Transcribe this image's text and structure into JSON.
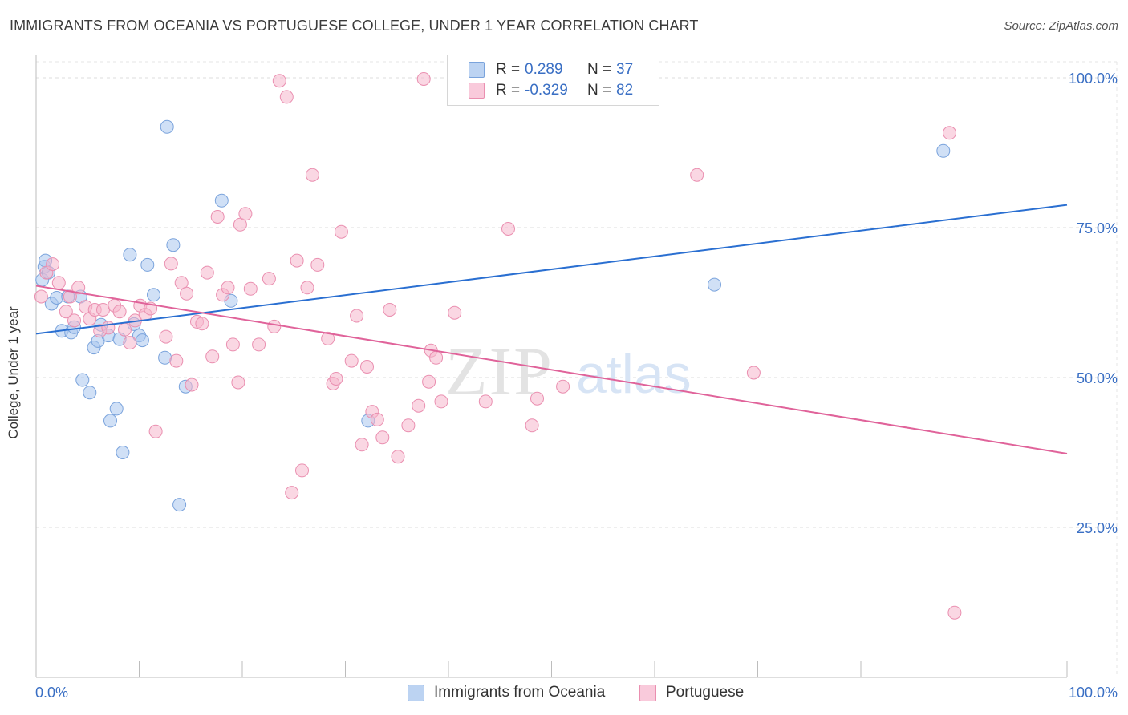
{
  "title": "IMMIGRANTS FROM OCEANIA VS PORTUGUESE COLLEGE, UNDER 1 YEAR CORRELATION CHART",
  "source": "Source: ZipAtlas.com",
  "watermark": {
    "zip": "ZIP",
    "atlas": "atlas"
  },
  "legend": {
    "rows": [
      {
        "r_label": "R =",
        "r_value": "0.289",
        "n_label": "N =",
        "n_value": "37",
        "color": "#a9c6ee"
      },
      {
        "r_label": "R =",
        "r_value": "-0.329",
        "n_label": "N =",
        "n_value": "82",
        "color": "#f5b6cc"
      }
    ]
  },
  "bottom_legend": [
    {
      "label": "Immigrants from Oceania",
      "color": "#a9c6ee"
    },
    {
      "label": "Portuguese",
      "color": "#f5b6cc"
    }
  ],
  "chart_data": {
    "type": "scatter",
    "title": "IMMIGRANTS FROM OCEANIA VS PORTUGUESE COLLEGE, UNDER 1 YEAR CORRELATION CHART",
    "xlabel": "",
    "ylabel": "College, Under 1 year",
    "xlim": [
      0,
      100
    ],
    "ylim": [
      0,
      105
    ],
    "x_tick_labels": [
      {
        "value": 0,
        "label": "0.0%"
      },
      {
        "value": 100,
        "label": "100.0%"
      }
    ],
    "y_tick_labels": [
      {
        "value": 25,
        "label": "25.0%"
      },
      {
        "value": 50,
        "label": "50.0%"
      },
      {
        "value": 75,
        "label": "75.0%"
      },
      {
        "value": 100,
        "label": "100.0%"
      }
    ],
    "x_minor_ticks": [
      10,
      20,
      30,
      40,
      50,
      60,
      70,
      80,
      90
    ],
    "grid": true,
    "series": [
      {
        "name": "Immigrants from Oceania",
        "color": "#a9c6ee",
        "stroke": "#7aa3dc",
        "trend": {
          "x": [
            0,
            100
          ],
          "y": [
            57.3,
            78.8
          ],
          "color": "#2a6fd1"
        },
        "points": [
          [
            0.6,
            66.3
          ],
          [
            0.8,
            68.5
          ],
          [
            0.9,
            69.5
          ],
          [
            1.2,
            67.5
          ],
          [
            1.5,
            62.3
          ],
          [
            2.0,
            63.3
          ],
          [
            2.5,
            57.8
          ],
          [
            3.1,
            63.5
          ],
          [
            3.4,
            57.5
          ],
          [
            3.7,
            58.4
          ],
          [
            4.3,
            63.5
          ],
          [
            4.5,
            49.6
          ],
          [
            5.2,
            47.5
          ],
          [
            5.6,
            55.0
          ],
          [
            6.0,
            56.1
          ],
          [
            6.3,
            58.8
          ],
          [
            7.0,
            57.0
          ],
          [
            7.2,
            42.8
          ],
          [
            7.8,
            44.8
          ],
          [
            8.1,
            56.4
          ],
          [
            8.4,
            37.5
          ],
          [
            9.1,
            70.5
          ],
          [
            9.5,
            58.9
          ],
          [
            10.0,
            57.0
          ],
          [
            10.3,
            56.2
          ],
          [
            10.8,
            68.8
          ],
          [
            11.4,
            63.8
          ],
          [
            12.5,
            53.3
          ],
          [
            12.7,
            91.8
          ],
          [
            13.3,
            72.1
          ],
          [
            13.9,
            28.8
          ],
          [
            14.5,
            48.5
          ],
          [
            18.0,
            79.5
          ],
          [
            18.9,
            62.8
          ],
          [
            32.2,
            42.8
          ],
          [
            65.8,
            65.5
          ],
          [
            88.0,
            87.8
          ]
        ]
      },
      {
        "name": "Portuguese",
        "color": "#f5b6cc",
        "stroke": "#ea8fb0",
        "trend": {
          "x": [
            0,
            100
          ],
          "y": [
            65.3,
            37.3
          ],
          "color": "#e0639a"
        },
        "points": [
          [
            0.5,
            63.5
          ],
          [
            1.0,
            67.5
          ],
          [
            1.6,
            68.9
          ],
          [
            2.2,
            65.8
          ],
          [
            2.9,
            61.0
          ],
          [
            3.3,
            63.5
          ],
          [
            3.7,
            59.5
          ],
          [
            4.1,
            65.0
          ],
          [
            4.8,
            61.8
          ],
          [
            5.2,
            59.8
          ],
          [
            5.7,
            61.3
          ],
          [
            6.2,
            57.8
          ],
          [
            6.5,
            61.3
          ],
          [
            7.0,
            58.3
          ],
          [
            7.6,
            62.0
          ],
          [
            8.1,
            61.0
          ],
          [
            8.6,
            58.0
          ],
          [
            9.1,
            55.8
          ],
          [
            9.6,
            59.5
          ],
          [
            10.1,
            62.0
          ],
          [
            10.6,
            60.5
          ],
          [
            11.1,
            61.5
          ],
          [
            11.6,
            41.0
          ],
          [
            12.6,
            56.8
          ],
          [
            13.1,
            69.0
          ],
          [
            13.6,
            52.8
          ],
          [
            14.1,
            65.8
          ],
          [
            14.6,
            64.0
          ],
          [
            15.1,
            48.8
          ],
          [
            15.6,
            59.3
          ],
          [
            16.1,
            59.0
          ],
          [
            16.6,
            67.5
          ],
          [
            17.1,
            53.5
          ],
          [
            17.6,
            76.8
          ],
          [
            18.1,
            63.8
          ],
          [
            18.6,
            65.0
          ],
          [
            19.1,
            55.5
          ],
          [
            19.6,
            49.2
          ],
          [
            19.8,
            75.5
          ],
          [
            20.3,
            77.3
          ],
          [
            20.8,
            64.8
          ],
          [
            21.6,
            55.5
          ],
          [
            22.6,
            66.5
          ],
          [
            23.1,
            58.5
          ],
          [
            23.6,
            99.5
          ],
          [
            24.3,
            96.8
          ],
          [
            24.8,
            30.8
          ],
          [
            25.3,
            69.5
          ],
          [
            25.8,
            34.5
          ],
          [
            26.3,
            65.0
          ],
          [
            26.8,
            83.8
          ],
          [
            27.3,
            68.8
          ],
          [
            28.3,
            56.5
          ],
          [
            28.8,
            49.0
          ],
          [
            29.1,
            49.8
          ],
          [
            29.6,
            74.3
          ],
          [
            30.6,
            52.8
          ],
          [
            31.1,
            60.3
          ],
          [
            31.6,
            38.8
          ],
          [
            32.1,
            51.8
          ],
          [
            32.6,
            44.3
          ],
          [
            33.1,
            43.0
          ],
          [
            33.6,
            40.0
          ],
          [
            34.3,
            61.3
          ],
          [
            35.1,
            36.8
          ],
          [
            36.1,
            42.0
          ],
          [
            37.1,
            45.3
          ],
          [
            37.6,
            99.8
          ],
          [
            38.1,
            49.3
          ],
          [
            38.3,
            54.5
          ],
          [
            38.8,
            53.3
          ],
          [
            39.3,
            46.0
          ],
          [
            40.6,
            60.8
          ],
          [
            43.6,
            46.0
          ],
          [
            45.8,
            74.8
          ],
          [
            48.1,
            42.0
          ],
          [
            48.6,
            46.5
          ],
          [
            51.1,
            48.5
          ],
          [
            64.1,
            83.8
          ],
          [
            69.6,
            50.8
          ],
          [
            88.6,
            90.8
          ],
          [
            89.1,
            10.8
          ]
        ]
      }
    ]
  }
}
